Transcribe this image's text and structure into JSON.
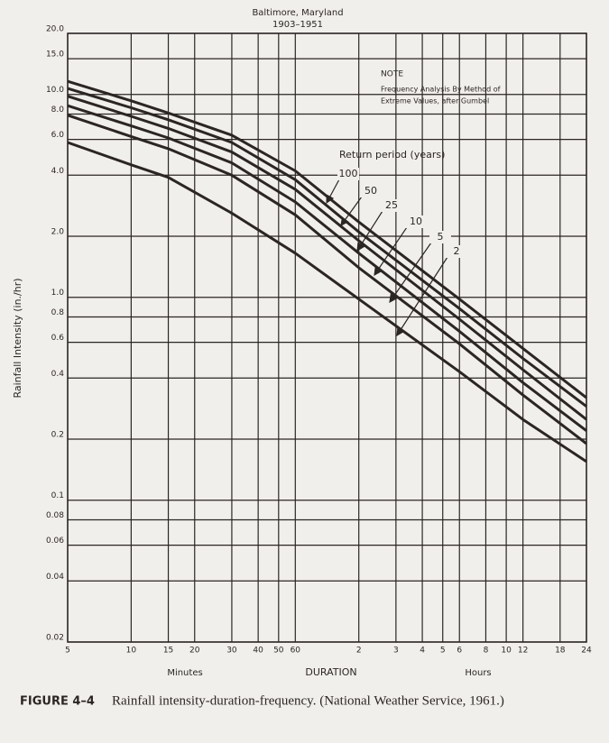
{
  "chart_data": {
    "type": "line",
    "title": "Baltimore, Maryland",
    "subtitle": "1903–1951",
    "note": [
      "NOTE",
      "Frequency Analysis By Method of",
      "Extreme Values, after Gumbel"
    ],
    "legend_title": "Return period (years)",
    "y_label": "Rainfall Intensity (in./hr)",
    "x_label": "DURATION",
    "x_group_labels": [
      "Minutes",
      "Hours"
    ],
    "caption_label": "FIGURE 4–4",
    "caption": "Rainfall intensity-duration-frequency. (National Weather Service, 1961.)",
    "log_x": true,
    "log_y": true,
    "grid": true,
    "xlim": [
      5,
      1440
    ],
    "ylim": [
      0.02,
      20
    ],
    "xticks": [
      5,
      10,
      15,
      20,
      30,
      40,
      50,
      60,
      {
        "value": 120,
        "label": "2"
      },
      {
        "value": 180,
        "label": "3"
      },
      {
        "value": 240,
        "label": "4"
      },
      {
        "value": 300,
        "label": "5"
      },
      {
        "value": 360,
        "label": "6"
      },
      {
        "value": 480,
        "label": "8"
      },
      {
        "value": 600,
        "label": "10"
      },
      {
        "value": 720,
        "label": "12"
      },
      {
        "value": 1080,
        "label": "18"
      },
      {
        "value": 1440,
        "label": "24"
      }
    ],
    "yticks": [
      0.02,
      0.04,
      0.06,
      0.08,
      0.1,
      0.2,
      0.4,
      0.6,
      0.8,
      {
        "value": 1,
        "label": "1.0"
      },
      {
        "value": 2,
        "label": "2.0"
      },
      {
        "value": 4,
        "label": "4.0"
      },
      {
        "value": 6,
        "label": "6.0"
      },
      {
        "value": 8,
        "label": "8.0"
      },
      {
        "value": 10,
        "label": "10.0"
      },
      {
        "value": 15,
        "label": "15.0"
      },
      {
        "value": 20,
        "label": "20.0"
      }
    ],
    "x": [
      5,
      10,
      15,
      30,
      60,
      120,
      360,
      720,
      1440
    ],
    "series": [
      {
        "name": "100",
        "color": "#2b2622",
        "values": [
          11.6,
          9.3,
          8.1,
          6.3,
          4.2,
          2.35,
          0.98,
          0.56,
          0.32
        ]
      },
      {
        "name": "50",
        "color": "#2b2622",
        "values": [
          10.7,
          8.6,
          7.5,
          5.8,
          3.8,
          2.1,
          0.88,
          0.5,
          0.29
        ]
      },
      {
        "name": "25",
        "color": "#2b2622",
        "values": [
          9.8,
          7.8,
          6.8,
          5.2,
          3.4,
          1.9,
          0.78,
          0.44,
          0.25
        ]
      },
      {
        "name": "10",
        "color": "#2b2622",
        "values": [
          8.8,
          7.0,
          6.1,
          4.6,
          2.95,
          1.65,
          0.68,
          0.38,
          0.22
        ]
      },
      {
        "name": "5",
        "color": "#2b2622",
        "values": [
          7.9,
          6.2,
          5.4,
          4.0,
          2.55,
          1.4,
          0.59,
          0.33,
          0.19
        ]
      },
      {
        "name": "2",
        "color": "#2b2622",
        "values": [
          5.8,
          4.5,
          3.9,
          2.6,
          1.65,
          0.98,
          0.43,
          0.25,
          0.155
        ]
      }
    ]
  }
}
